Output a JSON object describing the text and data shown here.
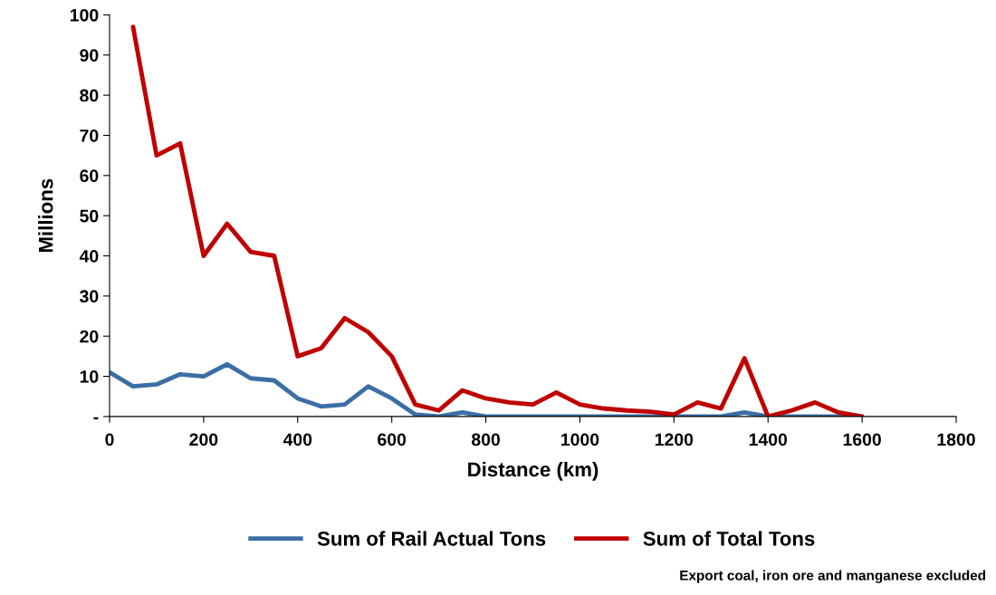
{
  "chart_data": {
    "type": "line",
    "xlabel": "Distance (km)",
    "ylabel": "Millions",
    "x": [
      0,
      50,
      100,
      150,
      200,
      250,
      300,
      350,
      400,
      450,
      500,
      550,
      600,
      650,
      700,
      750,
      800,
      850,
      900,
      950,
      1000,
      1050,
      1100,
      1150,
      1200,
      1250,
      1300,
      1350,
      1400,
      1450,
      1500,
      1550,
      1600
    ],
    "series": [
      {
        "name": "Sum of Rail Actual Tons",
        "color": "#3b6ea5",
        "values": [
          11,
          7.5,
          8,
          10.5,
          10,
          13,
          9.5,
          9,
          4.5,
          2.5,
          3,
          7.5,
          4.5,
          0.5,
          0,
          1,
          0,
          0,
          0,
          0,
          0,
          0,
          0,
          0,
          0,
          0,
          0,
          1,
          0,
          0,
          0,
          0,
          0
        ]
      },
      {
        "name": "Sum of Total Tons",
        "color": "#c00000",
        "values": [
          null,
          97,
          65,
          68,
          40,
          48,
          41,
          40,
          15,
          17,
          24.5,
          21,
          15,
          3,
          1.5,
          6.5,
          4.5,
          3.5,
          3,
          6,
          3,
          2,
          1.5,
          1.2,
          0.5,
          3.5,
          2,
          14.5,
          0,
          1.5,
          3.5,
          1,
          0
        ]
      }
    ],
    "xlim": [
      0,
      1800
    ],
    "xticks": [
      0,
      200,
      400,
      600,
      800,
      1000,
      1200,
      1400,
      1600,
      1800
    ],
    "ylim": [
      0,
      100
    ],
    "yticks": [
      {
        "value": 0,
        "label": "-"
      },
      10,
      20,
      30,
      40,
      50,
      60,
      70,
      80,
      90,
      100
    ],
    "grid": false,
    "legend": "bottom",
    "marker": "none",
    "line_style": "solid",
    "annotations": [
      "Export coal, iron ore and manganese excluded"
    ]
  }
}
